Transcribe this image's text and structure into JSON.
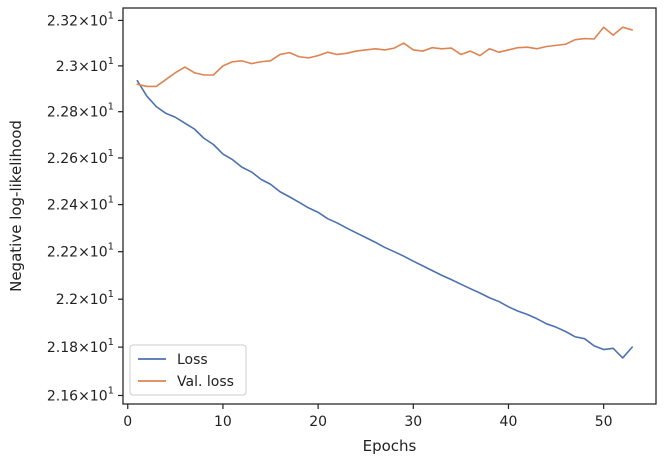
{
  "chart_data": {
    "type": "line",
    "xlabel": "Epochs",
    "ylabel": "Negative log-likelihood",
    "xlim": [
      -0.5,
      55.5
    ],
    "ylim": [
      21.565,
      23.255
    ],
    "yscale": "log",
    "grid": false,
    "legend_position": "lower-left",
    "x_ticks": [
      {
        "value": 0,
        "label": "0"
      },
      {
        "value": 10,
        "label": "10"
      },
      {
        "value": 20,
        "label": "20"
      },
      {
        "value": 30,
        "label": "30"
      },
      {
        "value": 40,
        "label": "40"
      },
      {
        "value": 50,
        "label": "50"
      }
    ],
    "y_ticks": [
      {
        "value": 21.6,
        "mantissa": "2.16",
        "times": "×",
        "base": "10",
        "exponent": "1"
      },
      {
        "value": 21.8,
        "mantissa": "2.18",
        "times": "×",
        "base": "10",
        "exponent": "1"
      },
      {
        "value": 22.0,
        "mantissa": "2.2",
        "times": "×",
        "base": "10",
        "exponent": "1"
      },
      {
        "value": 22.2,
        "mantissa": "2.22",
        "times": "×",
        "base": "10",
        "exponent": "1"
      },
      {
        "value": 22.4,
        "mantissa": "2.24",
        "times": "×",
        "base": "10",
        "exponent": "1"
      },
      {
        "value": 22.6,
        "mantissa": "2.26",
        "times": "×",
        "base": "10",
        "exponent": "1"
      },
      {
        "value": 22.8,
        "mantissa": "2.28",
        "times": "×",
        "base": "10",
        "exponent": "1"
      },
      {
        "value": 23.0,
        "mantissa": "2.3",
        "times": "×",
        "base": "10",
        "exponent": "1"
      },
      {
        "value": 23.2,
        "mantissa": "2.32",
        "times": "×",
        "base": "10",
        "exponent": "1"
      }
    ],
    "x": [
      1,
      2,
      3,
      4,
      5,
      6,
      7,
      8,
      9,
      10,
      11,
      12,
      13,
      14,
      15,
      16,
      17,
      18,
      19,
      20,
      21,
      22,
      23,
      24,
      25,
      26,
      27,
      28,
      29,
      30,
      31,
      32,
      33,
      34,
      35,
      36,
      37,
      38,
      39,
      40,
      41,
      42,
      43,
      44,
      45,
      46,
      47,
      48,
      49,
      50,
      51,
      52,
      53
    ],
    "series": [
      {
        "name": "Loss",
        "color": "#4c72b0",
        "values": [
          22.935,
          22.868,
          22.822,
          22.793,
          22.776,
          22.75,
          22.725,
          22.685,
          22.658,
          22.617,
          22.593,
          22.56,
          22.54,
          22.508,
          22.487,
          22.455,
          22.433,
          22.41,
          22.386,
          22.367,
          22.34,
          22.322,
          22.3,
          22.28,
          22.26,
          22.24,
          22.218,
          22.2,
          22.181,
          22.16,
          22.14,
          22.12,
          22.1,
          22.082,
          22.063,
          22.044,
          22.026,
          22.006,
          21.99,
          21.968,
          21.95,
          21.936,
          21.918,
          21.897,
          21.883,
          21.865,
          21.843,
          21.835,
          21.805,
          21.79,
          21.795,
          21.755,
          21.8
        ]
      },
      {
        "name": "Val. loss",
        "color": "#dd8452",
        "values": [
          22.92,
          22.91,
          22.91,
          22.94,
          22.97,
          22.995,
          22.97,
          22.96,
          22.96,
          23.0,
          23.018,
          23.022,
          23.01,
          23.018,
          23.022,
          23.05,
          23.058,
          23.04,
          23.035,
          23.045,
          23.06,
          23.05,
          23.055,
          23.065,
          23.07,
          23.075,
          23.07,
          23.078,
          23.1,
          23.07,
          23.065,
          23.08,
          23.075,
          23.078,
          23.05,
          23.065,
          23.045,
          23.075,
          23.06,
          23.07,
          23.08,
          23.082,
          23.075,
          23.085,
          23.09,
          23.095,
          23.115,
          23.12,
          23.118,
          23.17,
          23.135,
          23.17,
          23.158
        ]
      }
    ]
  }
}
